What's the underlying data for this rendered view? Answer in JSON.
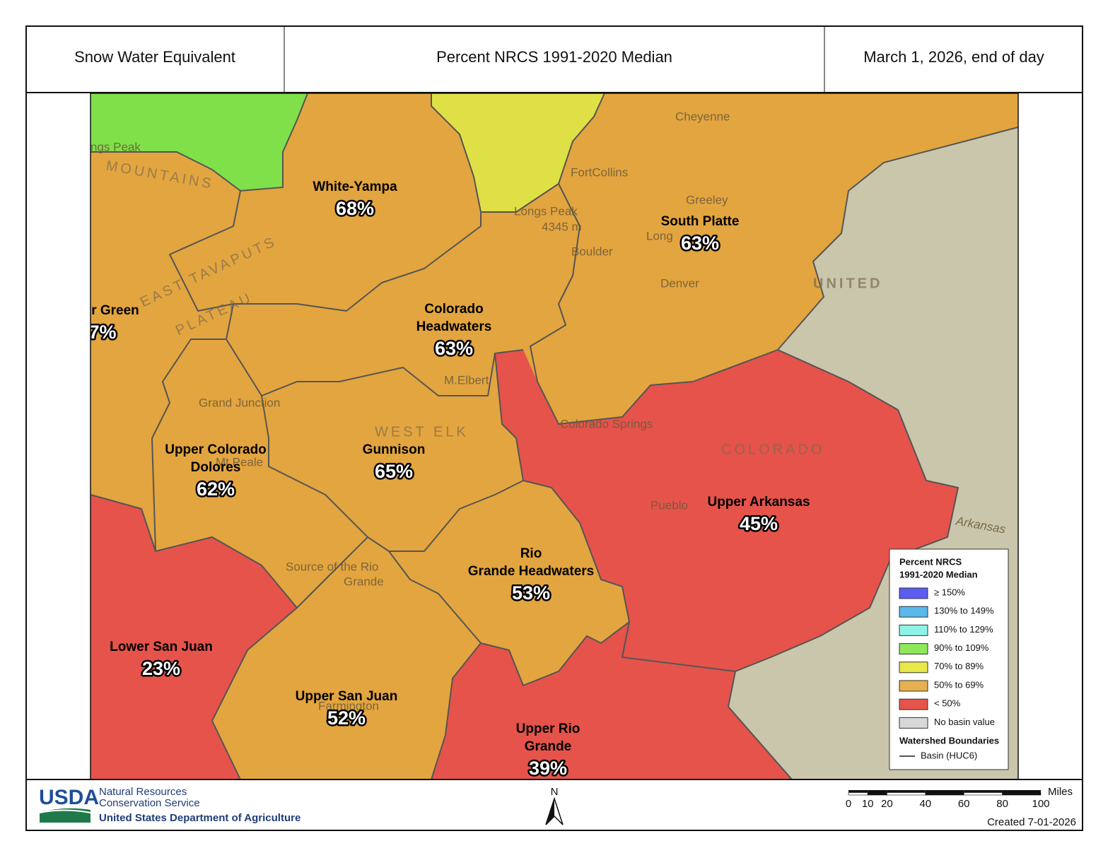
{
  "header": {
    "left": "Snow Water Equivalent",
    "center": "Percent NRCS 1991-2020 Median",
    "right": "March 1, 2026, end of day"
  },
  "basins": [
    {
      "name_lines": [
        "White-Yampa"
      ],
      "percent": "68%"
    },
    {
      "name_lines": [
        "South Platte"
      ],
      "percent": "63%"
    },
    {
      "name_lines": [
        "r Green"
      ],
      "percent": "7%"
    },
    {
      "name_lines": [
        "Colorado",
        "Headwaters"
      ],
      "percent": "63%"
    },
    {
      "name_lines": [
        "Gunnison"
      ],
      "percent": "65%"
    },
    {
      "name_lines": [
        "Upper Colorado",
        "Dolores"
      ],
      "percent": "62%"
    },
    {
      "name_lines": [
        "Upper Arkansas"
      ],
      "percent": "45%"
    },
    {
      "name_lines": [
        "Rio",
        "Grande Headwaters"
      ],
      "percent": "53%"
    },
    {
      "name_lines": [
        "Lower San Juan"
      ],
      "percent": "23%"
    },
    {
      "name_lines": [
        "Upper San Juan"
      ],
      "percent": "52%"
    },
    {
      "name_lines": [
        "Upper Rio",
        "Grande"
      ],
      "percent": "39%"
    }
  ],
  "places": [
    "Cheyenne",
    "FortCollins",
    "Greeley",
    "Long",
    "Boulder",
    "Denver",
    "Colorado Springs",
    "Pueblo",
    "Grand Junction",
    "Mt Peale",
    "Farmington",
    "M.Elbert",
    "Longs Peak",
    "4345 m",
    "Source of the Rio",
    "Grande",
    "Arkansas",
    "ngs Peak"
  ],
  "features": [
    "COLORADO",
    "UNITED",
    "WEST ELK",
    "EAST TAVAPUTS",
    "PLATEAU",
    "MOUNTAINS"
  ],
  "legend": {
    "title_lines": [
      "Percent NRCS",
      "1991-2020 Median"
    ],
    "items": [
      {
        "label": "≥ 150%",
        "color": "#5c5cf2"
      },
      {
        "label": "130% to 149%",
        "color": "#5ab8ea"
      },
      {
        "label": "110% to 129%",
        "color": "#8ff2e6"
      },
      {
        "label": "90% to 109%",
        "color": "#8ee85a"
      },
      {
        "label": "70% to 89%",
        "color": "#e8e84a"
      },
      {
        "label": "50% to 69%",
        "color": "#e6b04e"
      },
      {
        "label": "< 50%",
        "color": "#e5534b"
      },
      {
        "label": "No basin value",
        "color": "#d8d8d8"
      }
    ],
    "boundaries_title": "Watershed Boundaries",
    "boundary_item": "Basin (HUC6)"
  },
  "footer": {
    "logo": "USDA",
    "agency_lines": [
      "Natural Resources",
      "Conservation Service"
    ],
    "department": "United States Department of Agriculture",
    "north": "N",
    "scale": {
      "unit": "Miles",
      "ticks": [
        0,
        10,
        20,
        40,
        60,
        80,
        100
      ]
    },
    "created": "Created 7-01-2026"
  }
}
